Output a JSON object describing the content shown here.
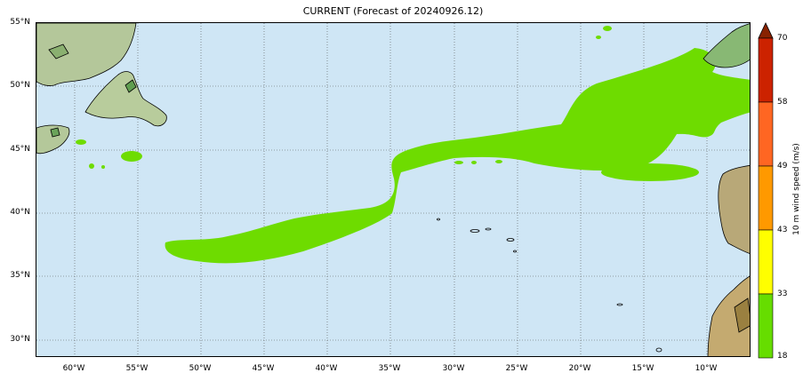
{
  "title": "CURRENT (Forecast of 20240926.12)",
  "lat_labels": [
    "55°N",
    "50°N",
    "45°N",
    "40°N",
    "35°N",
    "30°N"
  ],
  "lon_labels": [
    "60°W",
    "55°W",
    "50°W",
    "45°W",
    "40°W",
    "35°W",
    "30°W",
    "25°W",
    "20°W",
    "15°W",
    "10°W"
  ],
  "colorbar": {
    "title": "10 m wind speed (m/s)",
    "ticks": [
      "70",
      "58",
      "49",
      "43",
      "33",
      "18"
    ],
    "colors": [
      "#66dd00",
      "#ffff00",
      "#ff9900",
      "#ff6622",
      "#cc2200",
      "#882200"
    ]
  },
  "colors": {
    "ocean": "#cfe6f5",
    "wind_fill": "#6edc00",
    "land": "#a8c890"
  }
}
